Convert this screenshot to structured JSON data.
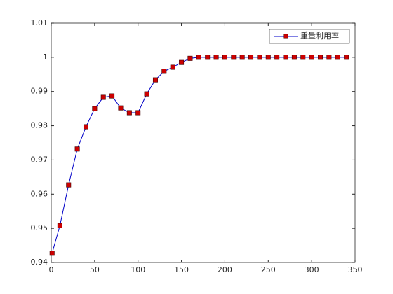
{
  "chart_data": {
    "type": "line",
    "x": [
      1,
      10,
      20,
      30,
      40,
      50,
      60,
      70,
      80,
      90,
      100,
      110,
      120,
      130,
      140,
      150,
      160,
      170,
      180,
      190,
      200,
      210,
      220,
      230,
      240,
      250,
      260,
      270,
      280,
      290,
      300,
      310,
      320,
      330,
      340
    ],
    "series": [
      {
        "name": "重量利用率",
        "color": "#0000c8",
        "marker_color": "#cc0000",
        "values": [
          0.9427,
          0.9508,
          0.9627,
          0.9732,
          0.9797,
          0.985,
          0.9883,
          0.9887,
          0.9852,
          0.9838,
          0.9838,
          0.9893,
          0.9934,
          0.9959,
          0.9971,
          0.9985,
          0.9997,
          1,
          1,
          1,
          1,
          1,
          1,
          1,
          1,
          1,
          1,
          1,
          1,
          1,
          1,
          1,
          1,
          1,
          1
        ]
      }
    ],
    "xlim": [
      0,
      350
    ],
    "xticks": [
      0,
      50,
      100,
      150,
      200,
      250,
      300,
      350
    ],
    "ylim": [
      0.94,
      1.01
    ],
    "yticks": [
      0.94,
      0.95,
      0.96,
      0.97,
      0.98,
      0.99,
      1,
      1.01
    ],
    "grid": false,
    "legend": "northeast"
  }
}
